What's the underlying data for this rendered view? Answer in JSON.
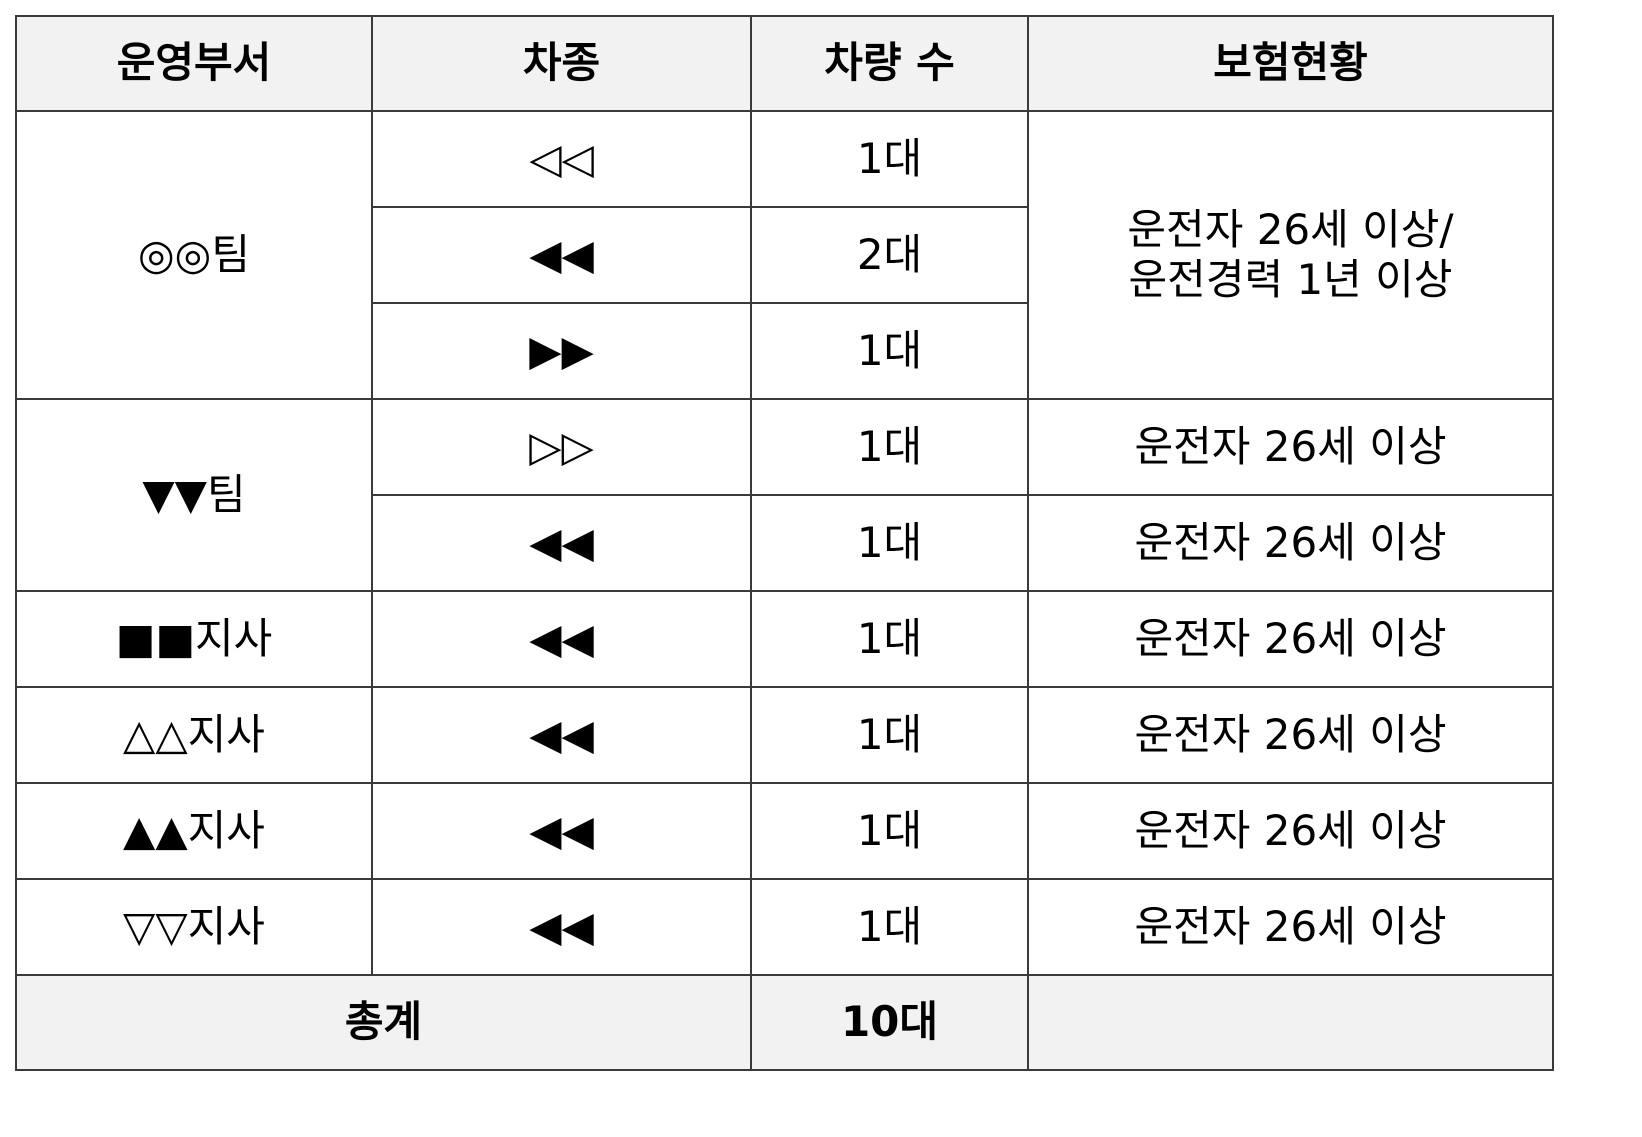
{
  "table": {
    "headers": [
      "운영부서",
      "차종",
      "차량 수",
      "보험현황"
    ],
    "groups": [
      {
        "department": "◎◎팀",
        "insurance_lines": [
          "운전자 26세 이상/",
          "운전경력 1년 이상"
        ],
        "rows": [
          {
            "type": "◁◁",
            "count": "1대"
          },
          {
            "type": "◀◀",
            "count": "2대"
          },
          {
            "type": "▶▶",
            "count": "1대"
          }
        ]
      },
      {
        "department": "▼▼팀",
        "rows": [
          {
            "type": "▷▷",
            "count": "1대",
            "insurance": "운전자 26세 이상"
          },
          {
            "type": "◀◀",
            "count": "1대",
            "insurance": "운전자 26세 이상"
          }
        ]
      },
      {
        "department": "■■지사",
        "rows": [
          {
            "type": "◀◀",
            "count": "1대",
            "insurance": "운전자 26세 이상"
          }
        ]
      },
      {
        "department": "△△지사",
        "rows": [
          {
            "type": "◀◀",
            "count": "1대",
            "insurance": "운전자 26세 이상"
          }
        ]
      },
      {
        "department": "▲▲지사",
        "rows": [
          {
            "type": "◀◀",
            "count": "1대",
            "insurance": "운전자 26세 이상"
          }
        ]
      },
      {
        "department": "▽▽지사",
        "rows": [
          {
            "type": "◀◀",
            "count": "1대",
            "insurance": "운전자 26세 이상"
          }
        ]
      }
    ],
    "total": {
      "label": "총계",
      "count": "10대",
      "insurance": ""
    }
  },
  "colors": {
    "header_background": "#f2f2f2",
    "border": "#3a3a3a"
  }
}
